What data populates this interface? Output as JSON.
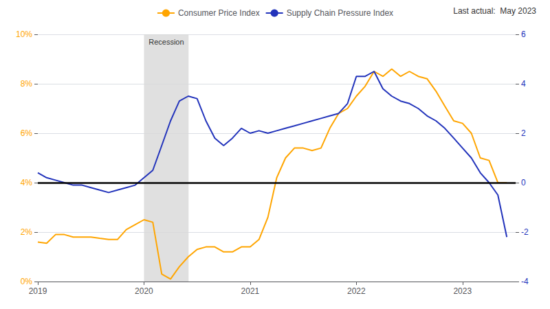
{
  "chart_data": {
    "type": "line",
    "annotation": "Last actual:  May 2023",
    "x": [
      2019.0,
      2019.083,
      2019.167,
      2019.25,
      2019.333,
      2019.417,
      2019.5,
      2019.583,
      2019.667,
      2019.75,
      2019.833,
      2019.917,
      2020.0,
      2020.083,
      2020.167,
      2020.25,
      2020.333,
      2020.417,
      2020.5,
      2020.583,
      2020.667,
      2020.75,
      2020.833,
      2020.917,
      2021.0,
      2021.083,
      2021.167,
      2021.25,
      2021.333,
      2021.417,
      2021.5,
      2021.583,
      2021.667,
      2021.75,
      2021.833,
      2021.917,
      2022.0,
      2022.083,
      2022.167,
      2022.25,
      2022.333,
      2022.417,
      2022.5,
      2022.583,
      2022.667,
      2022.75,
      2022.833,
      2022.917,
      2023.0,
      2023.083,
      2023.167,
      2023.25,
      2023.333,
      2023.417
    ],
    "series": [
      {
        "name": "Consumer Price Index",
        "color": "#FFA500",
        "axis": "y",
        "values": [
          1.6,
          1.55,
          1.9,
          1.9,
          1.8,
          1.8,
          1.8,
          1.75,
          1.7,
          1.7,
          2.1,
          2.3,
          2.5,
          2.4,
          0.3,
          0.1,
          0.6,
          1.0,
          1.3,
          1.4,
          1.4,
          1.2,
          1.2,
          1.4,
          1.4,
          1.7,
          2.6,
          4.2,
          5.0,
          5.4,
          5.4,
          5.3,
          5.4,
          6.2,
          6.8,
          7.0,
          7.5,
          7.9,
          8.5,
          8.3,
          8.6,
          8.3,
          8.5,
          8.3,
          8.2,
          7.7,
          7.1,
          6.5,
          6.4,
          6.0,
          5.0,
          4.9,
          4.0,
          4.0
        ]
      },
      {
        "name": "Supply Chain Pressure Index",
        "color": "#2233BB",
        "axis": "y2",
        "values": [
          0.4,
          0.2,
          0.1,
          0.0,
          -0.1,
          -0.1,
          -0.2,
          -0.3,
          -0.4,
          -0.3,
          -0.2,
          -0.1,
          0.2,
          0.5,
          1.5,
          2.5,
          3.3,
          3.5,
          3.4,
          2.5,
          1.8,
          1.5,
          1.8,
          2.2,
          2.0,
          2.1,
          2.0,
          2.1,
          2.2,
          2.3,
          2.4,
          2.5,
          2.6,
          2.7,
          2.8,
          3.2,
          4.3,
          4.3,
          4.5,
          3.8,
          3.5,
          3.3,
          3.2,
          3.0,
          2.7,
          2.5,
          2.2,
          1.8,
          1.4,
          1.0,
          0.4,
          0.0,
          -0.5,
          -2.2
        ]
      }
    ],
    "xlim": [
      2019.0,
      2023.5
    ],
    "xticks": [
      2019,
      2020,
      2021,
      2022,
      2023
    ],
    "ylim": [
      0,
      10
    ],
    "yticks": [
      {
        "value": 0,
        "label": "0%"
      },
      {
        "value": 2,
        "label": "2%"
      },
      {
        "value": 4,
        "label": "4%"
      },
      {
        "value": 6,
        "label": "6%"
      },
      {
        "value": 8,
        "label": "8%"
      },
      {
        "value": 10,
        "label": "10%"
      }
    ],
    "y2lim": [
      -4,
      6
    ],
    "y2ticks": [
      -4,
      -2,
      0,
      2,
      4,
      6
    ],
    "shaded_span": {
      "x": [
        2020.0,
        2020.42
      ],
      "label": "Recession",
      "color": "#D8D8D8"
    },
    "reference_line": {
      "y": 4.0,
      "color": "#000000"
    },
    "grid": "y",
    "legend": "top"
  }
}
